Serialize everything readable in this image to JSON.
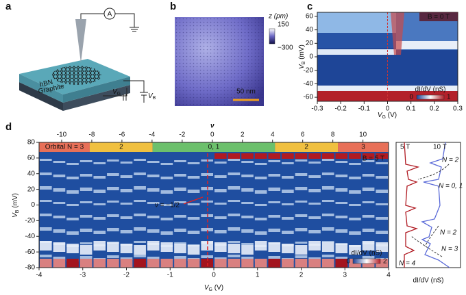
{
  "figure": {
    "a": {
      "label": "a",
      "ammeter": "A",
      "hbn": "hBN",
      "graphite": "Graphite",
      "vg": {
        "main": "V",
        "sub": "G"
      },
      "vb": {
        "main": "V",
        "sub": "B"
      }
    },
    "b": {
      "label": "b",
      "colorbar_title": "z (pm)",
      "colorbar_max": "150",
      "colorbar_min": "−300",
      "scale_bar": "50 nm"
    },
    "c": {
      "label": "c",
      "field": "B = 0 T",
      "xlim": [
        -0.3,
        0.3
      ],
      "xticks": [
        -0.3,
        -0.2,
        -0.1,
        0,
        0.1,
        0.2,
        0.3
      ],
      "ylim": [
        -66,
        66
      ],
      "yticks": [
        -60,
        -40,
        -20,
        0,
        20,
        40,
        60
      ],
      "xlabel": {
        "main": "V",
        "sub": "G",
        "unit": " (V)"
      },
      "ylabel": {
        "main": "V",
        "sub": "B",
        "unit": " (mV)"
      },
      "colorbar_title": "dI/dV (nS)",
      "colorbar_min": "0",
      "colorbar_max": "1"
    },
    "d": {
      "label": "d",
      "xlim": [
        -4,
        4
      ],
      "xticks": [
        -4,
        -3,
        -2,
        -1,
        0,
        1,
        2,
        3,
        4
      ],
      "ylim": [
        -80,
        80
      ],
      "yticks": [
        -80,
        -60,
        -40,
        -20,
        0,
        20,
        40,
        60,
        80
      ],
      "top_label": "ν",
      "top_lim": [
        -11.5,
        11.7
      ],
      "top_ticks": [
        -10,
        -8,
        -6,
        -4,
        -2,
        0,
        2,
        4,
        6,
        8,
        10
      ],
      "bands": [
        "Orbital N = 3",
        "2",
        "0, 1",
        "2",
        "3"
      ],
      "field": "B = 5 T",
      "annotation": "ν = −1/2",
      "xlabel": {
        "main": "V",
        "sub": "G",
        "unit": " (V)"
      },
      "ylabel": {
        "main": "V",
        "sub": "B",
        "unit": " (mV)"
      },
      "colorbar_title": "dI/dV (nS)",
      "colorbar_min": "0",
      "colorbar_max": "2",
      "side": {
        "field_low": "5 T",
        "field_high": "10 T",
        "levels": [
          "N = 2",
          "N = 0, 1",
          "N = 2",
          "N = 3",
          "N = 4"
        ],
        "xlabel": "dI/dV (nS)"
      }
    }
  }
}
